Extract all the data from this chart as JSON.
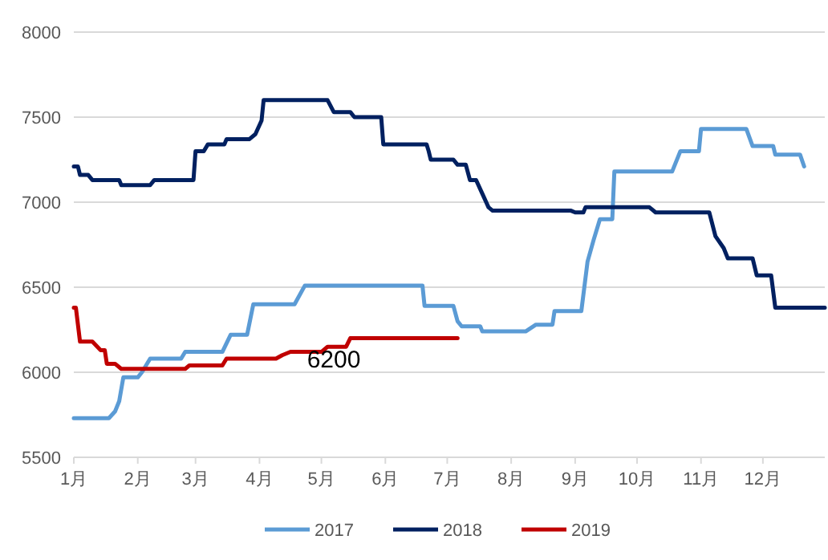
{
  "chart_data": {
    "type": "line",
    "grid": "y",
    "legend": "bottom",
    "xlim": [
      "--01-01",
      "--12-31"
    ],
    "xticks": [
      {
        "value": "--01-01",
        "label": "1月"
      },
      {
        "value": "--02-01",
        "label": "2月"
      },
      {
        "value": "--03-01",
        "label": "3月"
      },
      {
        "value": "--04-01",
        "label": "4月"
      },
      {
        "value": "--05-01",
        "label": "5月"
      },
      {
        "value": "--06-01",
        "label": "6月"
      },
      {
        "value": "--07-01",
        "label": "7月"
      },
      {
        "value": "--08-01",
        "label": "8月"
      },
      {
        "value": "--09-01",
        "label": "9月"
      },
      {
        "value": "--10-01",
        "label": "10月"
      },
      {
        "value": "--11-01",
        "label": "11月"
      },
      {
        "value": "--12-01",
        "label": "12月"
      }
    ],
    "ylim": [
      5500,
      8000
    ],
    "yticks": [
      5500,
      6000,
      6500,
      7000,
      7500,
      8000
    ],
    "annotations": [
      {
        "text": "6200",
        "x": "--05-07",
        "y": 6200
      }
    ],
    "series": [
      {
        "name": "2017",
        "color": "#5b9bd5",
        "x": [
          "--01-01",
          "--01-18",
          "--01-21",
          "--01-23",
          "--01-25",
          "--02-01",
          "--02-03",
          "--02-07",
          "--02-22",
          "--02-24",
          "--03-14",
          "--03-18",
          "--03-26",
          "--03-29",
          "--04-18",
          "--04-23",
          "--06-19",
          "--06-20",
          "--07-04",
          "--07-06",
          "--07-08",
          "--07-17",
          "--07-18",
          "--08-08",
          "--08-13",
          "--08-21",
          "--08-22",
          "--09-04",
          "--09-07",
          "--09-10",
          "--09-13",
          "--09-19",
          "--09-20",
          "--10-18",
          "--10-22",
          "--10-31",
          "--11-01",
          "--11-23",
          "--11-26",
          "--12-06",
          "--12-07",
          "--12-19",
          "--12-21"
        ],
        "values": [
          5730,
          5730,
          5770,
          5830,
          5970,
          5970,
          6000,
          6080,
          6080,
          6120,
          6120,
          6220,
          6220,
          6400,
          6400,
          6510,
          6510,
          6390,
          6390,
          6300,
          6270,
          6270,
          6240,
          6240,
          6280,
          6280,
          6360,
          6360,
          6650,
          6780,
          6900,
          6900,
          7180,
          7180,
          7300,
          7300,
          7430,
          7430,
          7330,
          7330,
          7280,
          7280,
          7210
        ]
      },
      {
        "name": "2018",
        "color": "#002060",
        "x": [
          "--01-01",
          "--01-03",
          "--01-04",
          "--01-08",
          "--01-10",
          "--01-23",
          "--01-24",
          "--02-07",
          "--02-09",
          "--02-28",
          "--03-01",
          "--03-05",
          "--03-07",
          "--03-15",
          "--03-16",
          "--03-27",
          "--03-30",
          "--04-02",
          "--04-03",
          "--05-04",
          "--05-07",
          "--05-15",
          "--05-17",
          "--05-30",
          "--05-31",
          "--06-21",
          "--06-22",
          "--06-23",
          "--07-04",
          "--07-06",
          "--07-10",
          "--07-12",
          "--07-15",
          "--07-18",
          "--07-21",
          "--07-23",
          "--08-30",
          "--09-01",
          "--09-05",
          "--09-06",
          "--10-07",
          "--10-10",
          "--11-05",
          "--11-08",
          "--11-12",
          "--11-14",
          "--11-26",
          "--11-28",
          "--12-05",
          "--12-07",
          "--12-31"
        ],
        "values": [
          7210,
          7210,
          7160,
          7160,
          7130,
          7130,
          7100,
          7100,
          7130,
          7130,
          7300,
          7300,
          7340,
          7340,
          7370,
          7370,
          7400,
          7480,
          7600,
          7600,
          7530,
          7530,
          7500,
          7500,
          7340,
          7340,
          7300,
          7250,
          7250,
          7220,
          7220,
          7130,
          7130,
          7050,
          6970,
          6950,
          6950,
          6940,
          6940,
          6970,
          6970,
          6940,
          6940,
          6800,
          6730,
          6670,
          6670,
          6570,
          6570,
          6380,
          6380
        ]
      },
      {
        "name": "2019",
        "color": "#c00000",
        "x": [
          "--01-01",
          "--01-02",
          "--01-04",
          "--01-10",
          "--01-14",
          "--01-16",
          "--01-17",
          "--01-21",
          "--01-24",
          "--02-24",
          "--02-26",
          "--03-14",
          "--03-16",
          "--04-09",
          "--04-12",
          "--04-16",
          "--05-01",
          "--05-04",
          "--05-13",
          "--05-15",
          "--07-06"
        ],
        "values": [
          6380,
          6380,
          6180,
          6180,
          6130,
          6130,
          6050,
          6050,
          6020,
          6020,
          6040,
          6040,
          6080,
          6080,
          6100,
          6120,
          6120,
          6150,
          6150,
          6200,
          6200
        ]
      }
    ]
  }
}
